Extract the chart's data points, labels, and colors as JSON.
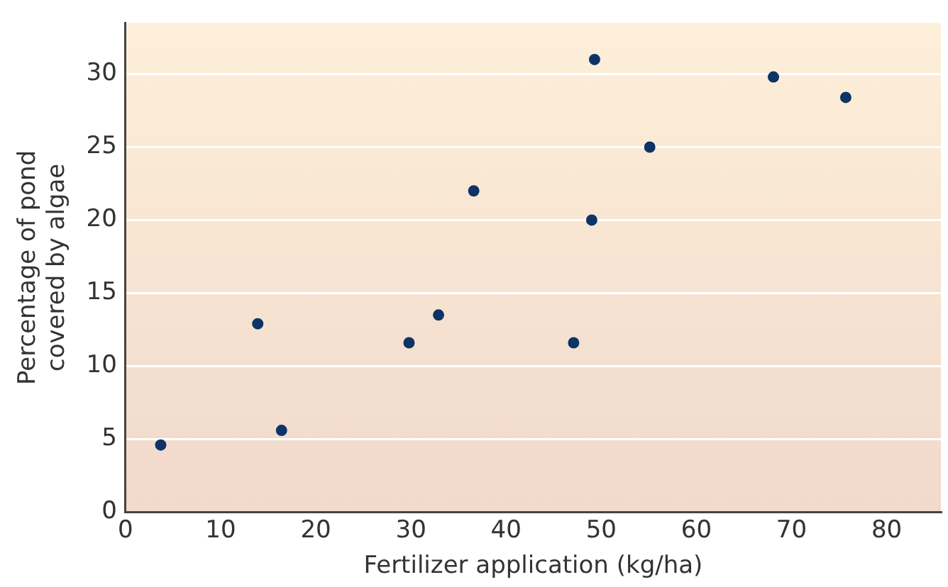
{
  "chart_data": {
    "type": "scatter",
    "xlabel": "Fertilizer application (kg/ha)",
    "ylabel": "Percentage of pond\ncovered by algae",
    "x": [
      3.7,
      16.4,
      13.9,
      29.8,
      32.9,
      36.6,
      47.1,
      49.0,
      49.3,
      55.1,
      68.1,
      75.7
    ],
    "series": [
      {
        "color": "#0d3466",
        "values": [
          4.6,
          5.6,
          12.9,
          11.6,
          13.5,
          22,
          11.6,
          20,
          31,
          25,
          29.8,
          28.4
        ]
      }
    ],
    "xlim": [
      0,
      85.7
    ],
    "ylim": [
      0,
      33.5
    ],
    "xticks": [
      0,
      10,
      20,
      30,
      40,
      50,
      60,
      70,
      80
    ],
    "yticks": [
      0,
      5,
      10,
      15,
      20,
      25,
      30
    ],
    "grid": "y",
    "legend": false,
    "marker": "circle"
  }
}
